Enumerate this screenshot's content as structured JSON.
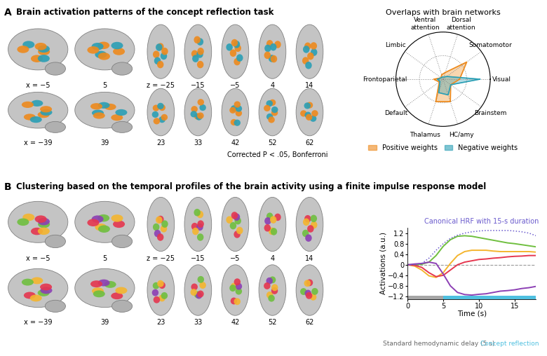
{
  "panel_a": {
    "label": "A",
    "title": "Brain activation patterns of the concept reflection task",
    "sagittal_labels": [
      "x = −5",
      "5",
      "x = −39",
      "39"
    ],
    "axial_labels": [
      "z = −25",
      "−15",
      "−5",
      "4",
      "14",
      "23",
      "33",
      "42",
      "52",
      "62"
    ],
    "note": "Corrected P < .05, Bonferroni"
  },
  "panel_b": {
    "label": "B",
    "title": "Clustering based on the temporal profiles of the brain activity using a finite impulse response model",
    "sagittal_labels": [
      "x = −5",
      "5",
      "x = −39",
      "39"
    ],
    "axial_labels": [
      "z = −25",
      "−15",
      "−5",
      "4",
      "14",
      "23",
      "33",
      "42",
      "52",
      "62"
    ]
  },
  "chart_data": [
    {
      "type": "radar",
      "title": "Overlaps with brain networks",
      "categories": [
        "Visual",
        "Somatomotor",
        "Dorsal attention",
        "Ventral attention",
        "Limbic",
        "Frontoparietal",
        "Default",
        "Thalamus",
        "HC/amy",
        "Brainstem"
      ],
      "ylim": [
        0,
        1
      ],
      "yticks": [
        0.5,
        1
      ],
      "grid": true,
      "tick_labels": "x",
      "legend": "lower center",
      "series": [
        {
          "name": "Positive weights",
          "color": "#ee8a1c",
          "values": [
            0.35,
            0.62,
            0.15,
            0.1,
            0.05,
            0.2,
            0.1,
            0.5,
            0.5,
            0.2
          ]
        },
        {
          "name": "Negative weights",
          "color": "#2a9fb5",
          "values": [
            0.78,
            0.1,
            0.05,
            0.05,
            0.05,
            0.12,
            0.08,
            0.3,
            0.35,
            0.2
          ]
        }
      ]
    },
    {
      "type": "line",
      "xlabel": "Time (s)",
      "ylabel": "Activations (a.u.)",
      "x": [
        0,
        1,
        2,
        3,
        4,
        5,
        6,
        7,
        8,
        9,
        10,
        11,
        12,
        13,
        14,
        15,
        16,
        17,
        18
      ],
      "xlim": [
        0,
        18
      ],
      "xticks": [
        0,
        5,
        10,
        15
      ],
      "ylim": [
        -1.3,
        1.4
      ],
      "yticks": [
        {
          "value": -1.2,
          "label": "−1.2"
        },
        {
          "value": -0.8,
          "label": "−0.8"
        },
        {
          "value": -0.4,
          "label": "−0.4"
        },
        0,
        0.4,
        0.8,
        1.2
      ],
      "baseline": 0,
      "series": [
        {
          "color": "#6fbf3f",
          "values": [
            0,
            0,
            0.02,
            0.1,
            0.35,
            0.7,
            0.95,
            1.08,
            1.1,
            1.08,
            1.03,
            0.98,
            0.93,
            0.88,
            0.83,
            0.8,
            0.76,
            0.72,
            0.68
          ]
        },
        {
          "color": "#f4b52e",
          "values": [
            0,
            -0.05,
            -0.2,
            -0.42,
            -0.48,
            -0.3,
            0.05,
            0.35,
            0.5,
            0.55,
            0.55,
            0.55,
            0.52,
            0.5,
            0.5,
            0.5,
            0.5,
            0.5,
            0.48
          ]
        },
        {
          "color": "#e5364f",
          "values": [
            0,
            -0.02,
            -0.1,
            -0.3,
            -0.45,
            -0.4,
            -0.2,
            0.0,
            0.1,
            0.15,
            0.2,
            0.22,
            0.25,
            0.27,
            0.3,
            0.32,
            0.33,
            0.35,
            0.35
          ]
        },
        {
          "color": "#8c3fb4",
          "values": [
            0,
            0.03,
            0.05,
            0.1,
            0.05,
            -0.35,
            -0.8,
            -1.05,
            -1.13,
            -1.15,
            -1.12,
            -1.1,
            -1.05,
            -1.0,
            -0.98,
            -0.95,
            -0.9,
            -0.87,
            -0.82
          ]
        },
        {
          "name": "Canonical HRF with 15-s duration",
          "color": "#6a5acd",
          "line_style": "dotted",
          "values": [
            0,
            0,
            0.05,
            0.25,
            0.55,
            0.8,
            1.0,
            1.12,
            1.2,
            1.25,
            1.28,
            1.3,
            1.3,
            1.3,
            1.3,
            1.28,
            1.25,
            1.2,
            1.1
          ]
        }
      ],
      "spans": [
        {
          "start": 0,
          "end": 5,
          "label": "Standard hemodynamic delay (5 s)",
          "color": "#a6a6a6"
        },
        {
          "start": 5,
          "end": 18,
          "label": "Concept reflection",
          "color": "#4fc0e0"
        }
      ]
    }
  ]
}
